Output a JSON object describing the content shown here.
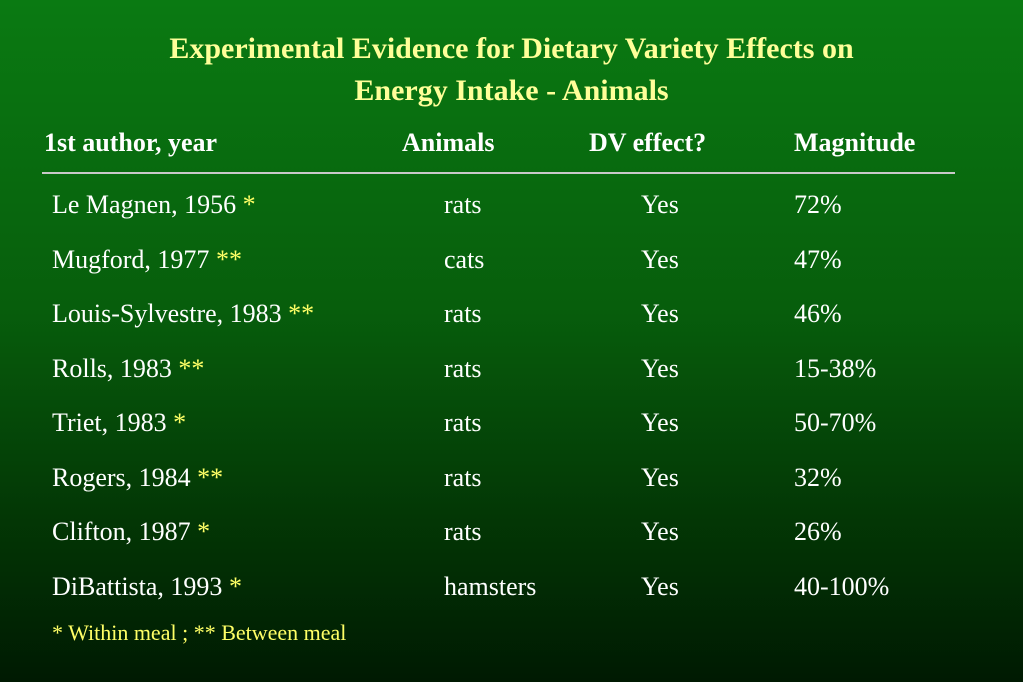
{
  "title": {
    "line1": "Experimental Evidence for Dietary Variety Effects on",
    "line2": "Energy Intake  - Animals"
  },
  "headers": {
    "author": "1st author, year",
    "animals": "Animals",
    "dv": "DV effect?",
    "magnitude": "Magnitude"
  },
  "rows": [
    {
      "author": "Le Magnen, 1956",
      "mark": "*",
      "animals": "rats",
      "dv": "Yes",
      "magnitude": "72%"
    },
    {
      "author": "Mugford, 1977",
      "mark": "**",
      "animals": "cats",
      "dv": "Yes",
      "magnitude": "47%"
    },
    {
      "author": "Louis-Sylvestre, 1983",
      "mark": "**",
      "animals": "rats",
      "dv": "Yes",
      "magnitude": "46%"
    },
    {
      "author": "Rolls, 1983",
      "mark": "**",
      "animals": "rats",
      "dv": "Yes",
      "magnitude": "15-38%"
    },
    {
      "author": "Triet, 1983",
      "mark": "*",
      "animals": "rats",
      "dv": "Yes",
      "magnitude": "50-70%"
    },
    {
      "author": "Rogers, 1984",
      "mark": "**",
      "animals": "rats",
      "dv": "Yes",
      "magnitude": "32%"
    },
    {
      "author": "Clifton, 1987",
      "mark": "*",
      "animals": "rats",
      "dv": "Yes",
      "magnitude": "26%"
    },
    {
      "author": "DiBattista, 1993",
      "mark": "*",
      "animals": "hamsters",
      "dv": "Yes",
      "magnitude": "40-100%"
    }
  ],
  "footnote": "*  Within meal ; **  Between meal",
  "colors": {
    "title": "#ffff99",
    "mark": "#ffff66",
    "background_top": "#0a7a12",
    "background_bottom": "#001a02"
  }
}
